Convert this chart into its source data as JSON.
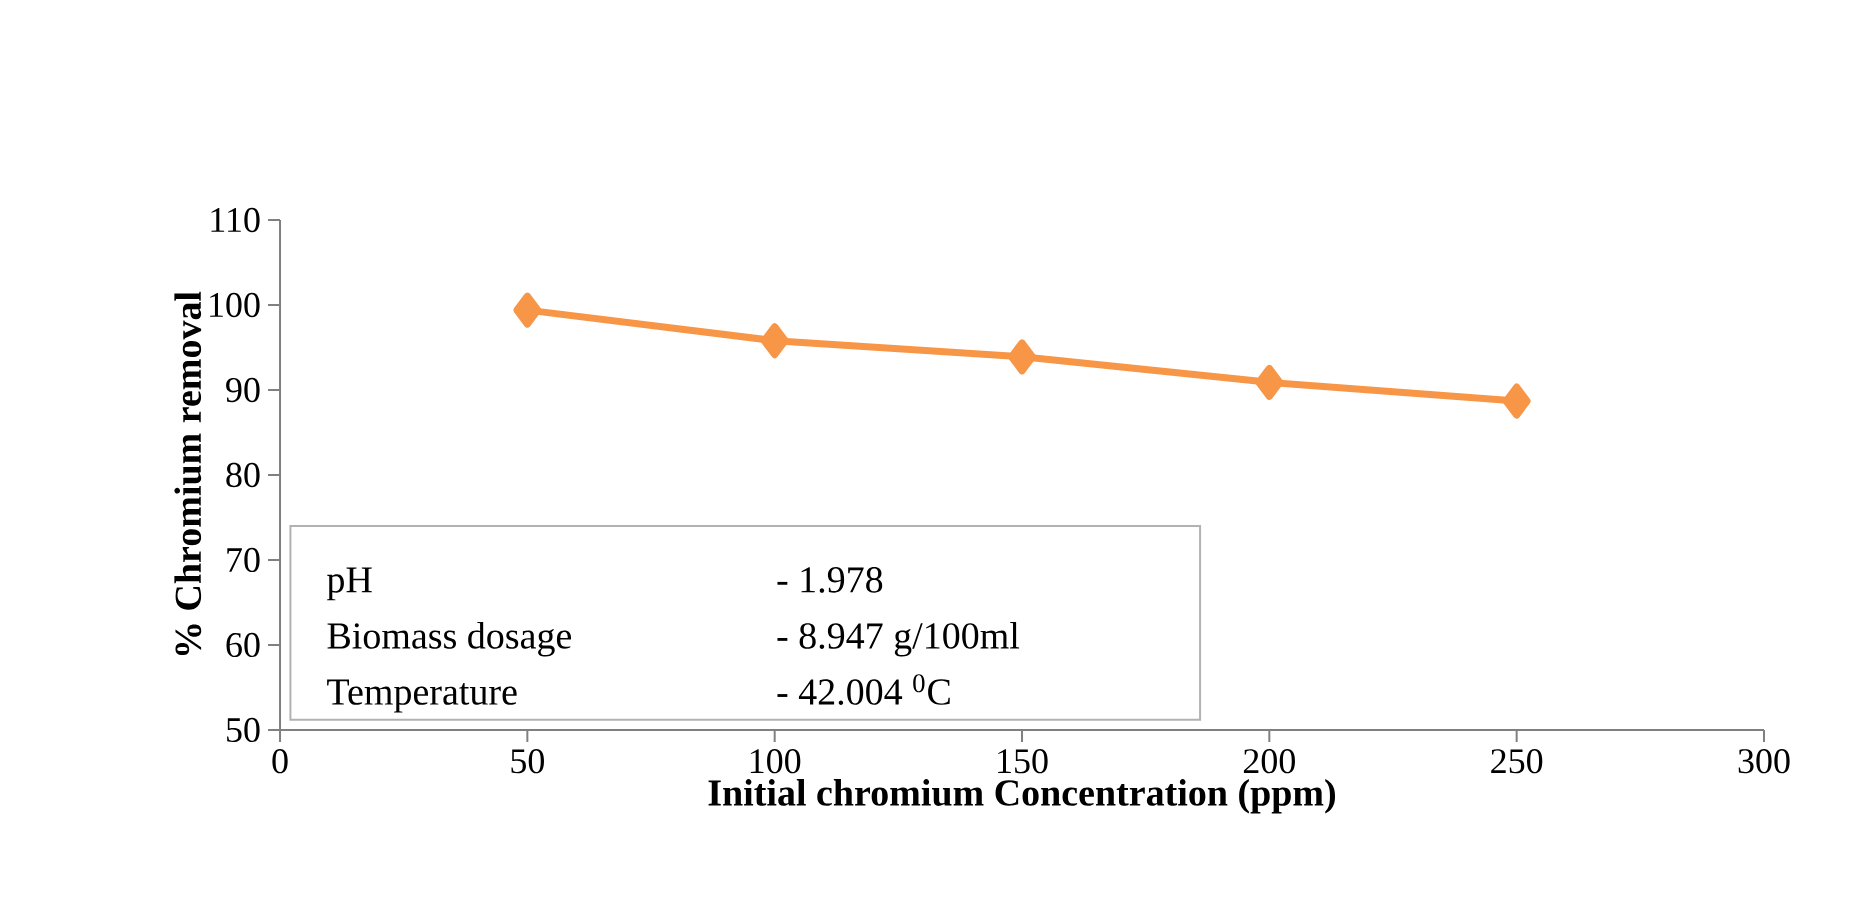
{
  "chart_data": {
    "type": "line",
    "xlabel": "Initial chromium Concentration (ppm)",
    "ylabel": "% Chromium removal",
    "x": [
      50,
      100,
      150,
      200,
      250
    ],
    "series": [
      {
        "color": "#f79646",
        "values": [
          99.4,
          95.8,
          93.9,
          90.9,
          88.7
        ]
      }
    ],
    "marker": "diamond",
    "line_style": "solid",
    "xlim": [
      0,
      300
    ],
    "xticks": [
      0,
      50,
      100,
      150,
      200,
      250,
      300
    ],
    "ylim": [
      50,
      110
    ],
    "yticks": [
      50,
      60,
      70,
      80,
      90,
      100,
      110
    ],
    "grid": false,
    "annotations": [
      "pH",
      "- 1.978",
      "Biomass dosage",
      "- 8.947 g/100ml",
      "Temperature",
      "- 42.004 $^{0}$C"
    ]
  }
}
